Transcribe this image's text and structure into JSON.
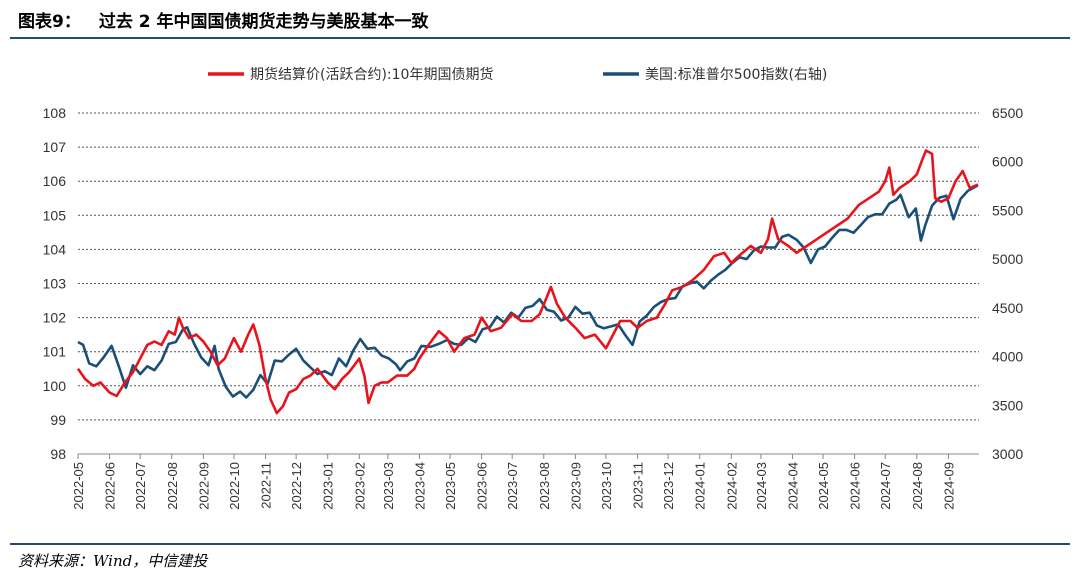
{
  "header": {
    "figure_label": "图表9：",
    "title": "过去 2 年中国国债期货走势与美股基本一致"
  },
  "footer": {
    "source": "资料来源：Wind，中信建投"
  },
  "chart_data": {
    "type": "line",
    "title": "过去 2 年中国国债期货走势与美股基本一致",
    "legend_position": "top-center",
    "grid": true,
    "y_left": {
      "ticks": [
        98,
        99,
        100,
        101,
        102,
        103,
        104,
        105,
        106,
        107,
        108
      ],
      "range": [
        98,
        108
      ]
    },
    "y_right": {
      "ticks": [
        3000,
        3500,
        4000,
        4500,
        5000,
        5500,
        6000,
        6500
      ],
      "range": [
        3000,
        6500
      ]
    },
    "x": {
      "range": [
        "2022-05",
        "2024-10"
      ],
      "ticks": [
        "2022-05",
        "2022-06",
        "2022-07",
        "2022-08",
        "2022-09",
        "2022-10",
        "2022-11",
        "2022-12",
        "2023-01",
        "2023-02",
        "2023-03",
        "2023-04",
        "2023-05",
        "2023-06",
        "2023-07",
        "2023-08",
        "2023-09",
        "2023-10",
        "2023-11",
        "2023-12",
        "2024-01",
        "2024-02",
        "2024-03",
        "2024-04",
        "2024-05",
        "2024-06",
        "2024-07",
        "2024-08",
        "2024-09"
      ]
    },
    "series": [
      {
        "name": "期货结算价(活跃合约):10年期国债期货",
        "axis": "left",
        "color": "#e8141c",
        "points": [
          [
            "2022-05-01",
            100.5
          ],
          [
            "2022-05-08",
            100.2
          ],
          [
            "2022-05-16",
            100.0
          ],
          [
            "2022-05-23",
            100.1
          ],
          [
            "2022-06-01",
            99.8
          ],
          [
            "2022-06-08",
            99.7
          ],
          [
            "2022-06-16",
            100.1
          ],
          [
            "2022-06-24",
            100.4
          ],
          [
            "2022-07-01",
            100.8
          ],
          [
            "2022-07-08",
            101.2
          ],
          [
            "2022-07-15",
            101.3
          ],
          [
            "2022-07-22",
            101.2
          ],
          [
            "2022-07-29",
            101.6
          ],
          [
            "2022-08-04",
            101.5
          ],
          [
            "2022-08-08",
            102.0
          ],
          [
            "2022-08-12",
            101.7
          ],
          [
            "2022-08-18",
            101.4
          ],
          [
            "2022-08-25",
            101.5
          ],
          [
            "2022-09-01",
            101.3
          ],
          [
            "2022-09-08",
            101.0
          ],
          [
            "2022-09-15",
            100.6
          ],
          [
            "2022-09-22",
            100.8
          ],
          [
            "2022-10-01",
            101.4
          ],
          [
            "2022-10-08",
            101.0
          ],
          [
            "2022-10-15",
            101.5
          ],
          [
            "2022-10-20",
            101.8
          ],
          [
            "2022-10-26",
            101.2
          ],
          [
            "2022-11-01",
            100.2
          ],
          [
            "2022-11-06",
            99.6
          ],
          [
            "2022-11-12",
            99.2
          ],
          [
            "2022-11-18",
            99.4
          ],
          [
            "2022-11-24",
            99.8
          ],
          [
            "2022-12-01",
            99.9
          ],
          [
            "2022-12-08",
            100.2
          ],
          [
            "2022-12-15",
            100.3
          ],
          [
            "2022-12-22",
            100.5
          ],
          [
            "2023-01-01",
            100.1
          ],
          [
            "2023-01-08",
            99.9
          ],
          [
            "2023-01-15",
            100.2
          ],
          [
            "2023-01-22",
            100.4
          ],
          [
            "2023-02-01",
            100.8
          ],
          [
            "2023-02-06",
            100.3
          ],
          [
            "2023-02-10",
            99.5
          ],
          [
            "2023-02-16",
            100.0
          ],
          [
            "2023-02-23",
            100.1
          ],
          [
            "2023-03-01",
            100.1
          ],
          [
            "2023-03-10",
            100.3
          ],
          [
            "2023-03-20",
            100.3
          ],
          [
            "2023-03-27",
            100.5
          ],
          [
            "2023-04-01",
            100.8
          ],
          [
            "2023-04-10",
            101.2
          ],
          [
            "2023-04-20",
            101.6
          ],
          [
            "2023-04-28",
            101.4
          ],
          [
            "2023-05-05",
            101.0
          ],
          [
            "2023-05-15",
            101.4
          ],
          [
            "2023-05-25",
            101.5
          ],
          [
            "2023-06-01",
            102.0
          ],
          [
            "2023-06-10",
            101.6
          ],
          [
            "2023-06-20",
            101.7
          ],
          [
            "2023-07-01",
            102.1
          ],
          [
            "2023-07-10",
            101.9
          ],
          [
            "2023-07-20",
            101.9
          ],
          [
            "2023-07-28",
            102.1
          ],
          [
            "2023-08-04",
            102.6
          ],
          [
            "2023-08-08",
            102.9
          ],
          [
            "2023-08-14",
            102.4
          ],
          [
            "2023-08-22",
            102.0
          ],
          [
            "2023-09-01",
            101.7
          ],
          [
            "2023-09-10",
            101.4
          ],
          [
            "2023-09-20",
            101.5
          ],
          [
            "2023-10-01",
            101.1
          ],
          [
            "2023-10-08",
            101.5
          ],
          [
            "2023-10-15",
            101.9
          ],
          [
            "2023-10-25",
            101.9
          ],
          [
            "2023-11-01",
            101.7
          ],
          [
            "2023-11-10",
            101.9
          ],
          [
            "2023-11-20",
            102.0
          ],
          [
            "2023-11-28",
            102.4
          ],
          [
            "2023-12-05",
            102.8
          ],
          [
            "2023-12-15",
            102.9
          ],
          [
            "2023-12-25",
            103.1
          ],
          [
            "2024-01-05",
            103.4
          ],
          [
            "2024-01-15",
            103.8
          ],
          [
            "2024-01-25",
            103.9
          ],
          [
            "2024-02-01",
            103.6
          ],
          [
            "2024-02-08",
            103.8
          ],
          [
            "2024-02-20",
            104.1
          ],
          [
            "2024-03-01",
            103.9
          ],
          [
            "2024-03-08",
            104.3
          ],
          [
            "2024-03-12",
            104.9
          ],
          [
            "2024-03-18",
            104.3
          ],
          [
            "2024-03-28",
            104.1
          ],
          [
            "2024-04-05",
            103.9
          ],
          [
            "2024-04-15",
            104.1
          ],
          [
            "2024-04-25",
            104.3
          ],
          [
            "2024-05-05",
            104.5
          ],
          [
            "2024-05-15",
            104.7
          ],
          [
            "2024-05-25",
            104.9
          ],
          [
            "2024-06-05",
            105.3
          ],
          [
            "2024-06-15",
            105.5
          ],
          [
            "2024-06-25",
            105.7
          ],
          [
            "2024-07-01",
            106.0
          ],
          [
            "2024-07-05",
            106.4
          ],
          [
            "2024-07-09",
            105.6
          ],
          [
            "2024-07-15",
            105.8
          ],
          [
            "2024-07-25",
            106.0
          ],
          [
            "2024-08-01",
            106.2
          ],
          [
            "2024-08-06",
            106.6
          ],
          [
            "2024-08-10",
            106.9
          ],
          [
            "2024-08-16",
            106.8
          ],
          [
            "2024-08-19",
            105.5
          ],
          [
            "2024-08-25",
            105.4
          ],
          [
            "2024-09-01",
            105.5
          ],
          [
            "2024-09-08",
            106.0
          ],
          [
            "2024-09-15",
            106.3
          ],
          [
            "2024-09-22",
            105.8
          ],
          [
            "2024-09-30",
            105.9
          ]
        ]
      },
      {
        "name": "美国:标准普尔500指数(右轴)",
        "axis": "right",
        "color": "#1a4f7a",
        "points": [
          [
            "2022-05-01",
            4150
          ],
          [
            "2022-05-06",
            4120
          ],
          [
            "2022-05-12",
            3930
          ],
          [
            "2022-05-19",
            3900
          ],
          [
            "2022-05-26",
            3990
          ],
          [
            "2022-06-03",
            4110
          ],
          [
            "2022-06-10",
            3900
          ],
          [
            "2022-06-17",
            3680
          ],
          [
            "2022-06-24",
            3910
          ],
          [
            "2022-07-01",
            3820
          ],
          [
            "2022-07-08",
            3900
          ],
          [
            "2022-07-15",
            3860
          ],
          [
            "2022-07-22",
            3960
          ],
          [
            "2022-07-29",
            4130
          ],
          [
            "2022-08-05",
            4150
          ],
          [
            "2022-08-12",
            4280
          ],
          [
            "2022-08-16",
            4300
          ],
          [
            "2022-08-23",
            4130
          ],
          [
            "2022-08-30",
            3990
          ],
          [
            "2022-09-06",
            3910
          ],
          [
            "2022-09-12",
            4110
          ],
          [
            "2022-09-16",
            3870
          ],
          [
            "2022-09-23",
            3690
          ],
          [
            "2022-09-30",
            3590
          ],
          [
            "2022-10-07",
            3640
          ],
          [
            "2022-10-13",
            3580
          ],
          [
            "2022-10-20",
            3660
          ],
          [
            "2022-10-27",
            3810
          ],
          [
            "2022-11-03",
            3720
          ],
          [
            "2022-11-10",
            3960
          ],
          [
            "2022-11-17",
            3950
          ],
          [
            "2022-11-24",
            4020
          ],
          [
            "2022-12-01",
            4080
          ],
          [
            "2022-12-08",
            3960
          ],
          [
            "2022-12-15",
            3890
          ],
          [
            "2022-12-22",
            3820
          ],
          [
            "2022-12-29",
            3850
          ],
          [
            "2023-01-05",
            3810
          ],
          [
            "2023-01-12",
            3980
          ],
          [
            "2023-01-19",
            3900
          ],
          [
            "2023-01-26",
            4060
          ],
          [
            "2023-02-02",
            4180
          ],
          [
            "2023-02-09",
            4080
          ],
          [
            "2023-02-16",
            4090
          ],
          [
            "2023-02-23",
            4010
          ],
          [
            "2023-03-02",
            3980
          ],
          [
            "2023-03-09",
            3920
          ],
          [
            "2023-03-13",
            3860
          ],
          [
            "2023-03-20",
            3950
          ],
          [
            "2023-03-27",
            3980
          ],
          [
            "2023-04-03",
            4110
          ],
          [
            "2023-04-12",
            4100
          ],
          [
            "2023-04-20",
            4130
          ],
          [
            "2023-04-28",
            4170
          ],
          [
            "2023-05-05",
            4130
          ],
          [
            "2023-05-12",
            4120
          ],
          [
            "2023-05-19",
            4190
          ],
          [
            "2023-05-26",
            4150
          ],
          [
            "2023-06-02",
            4280
          ],
          [
            "2023-06-09",
            4300
          ],
          [
            "2023-06-16",
            4410
          ],
          [
            "2023-06-23",
            4350
          ],
          [
            "2023-06-30",
            4450
          ],
          [
            "2023-07-07",
            4400
          ],
          [
            "2023-07-14",
            4500
          ],
          [
            "2023-07-21",
            4520
          ],
          [
            "2023-07-28",
            4590
          ],
          [
            "2023-08-04",
            4480
          ],
          [
            "2023-08-11",
            4460
          ],
          [
            "2023-08-18",
            4370
          ],
          [
            "2023-08-25",
            4400
          ],
          [
            "2023-09-01",
            4510
          ],
          [
            "2023-09-08",
            4440
          ],
          [
            "2023-09-15",
            4450
          ],
          [
            "2023-09-22",
            4320
          ],
          [
            "2023-09-29",
            4290
          ],
          [
            "2023-10-06",
            4310
          ],
          [
            "2023-10-13",
            4330
          ],
          [
            "2023-10-20",
            4220
          ],
          [
            "2023-10-27",
            4120
          ],
          [
            "2023-11-03",
            4360
          ],
          [
            "2023-11-10",
            4420
          ],
          [
            "2023-11-17",
            4510
          ],
          [
            "2023-11-24",
            4560
          ],
          [
            "2023-12-01",
            4590
          ],
          [
            "2023-12-08",
            4600
          ],
          [
            "2023-12-15",
            4720
          ],
          [
            "2023-12-22",
            4750
          ],
          [
            "2023-12-29",
            4770
          ],
          [
            "2024-01-05",
            4700
          ],
          [
            "2024-01-12",
            4780
          ],
          [
            "2024-01-19",
            4840
          ],
          [
            "2024-01-26",
            4890
          ],
          [
            "2024-02-02",
            4960
          ],
          [
            "2024-02-09",
            5020
          ],
          [
            "2024-02-16",
            5000
          ],
          [
            "2024-02-23",
            5090
          ],
          [
            "2024-03-01",
            5130
          ],
          [
            "2024-03-08",
            5120
          ],
          [
            "2024-03-15",
            5120
          ],
          [
            "2024-03-22",
            5230
          ],
          [
            "2024-03-28",
            5250
          ],
          [
            "2024-04-05",
            5200
          ],
          [
            "2024-04-12",
            5120
          ],
          [
            "2024-04-19",
            4960
          ],
          [
            "2024-04-26",
            5100
          ],
          [
            "2024-05-03",
            5130
          ],
          [
            "2024-05-10",
            5220
          ],
          [
            "2024-05-17",
            5300
          ],
          [
            "2024-05-24",
            5300
          ],
          [
            "2024-05-31",
            5270
          ],
          [
            "2024-06-07",
            5350
          ],
          [
            "2024-06-14",
            5430
          ],
          [
            "2024-06-21",
            5460
          ],
          [
            "2024-06-28",
            5460
          ],
          [
            "2024-07-05",
            5570
          ],
          [
            "2024-07-12",
            5610
          ],
          [
            "2024-07-16",
            5660
          ],
          [
            "2024-07-24",
            5430
          ],
          [
            "2024-07-31",
            5520
          ],
          [
            "2024-08-05",
            5190
          ],
          [
            "2024-08-09",
            5340
          ],
          [
            "2024-08-16",
            5550
          ],
          [
            "2024-08-23",
            5630
          ],
          [
            "2024-08-30",
            5650
          ],
          [
            "2024-09-06",
            5410
          ],
          [
            "2024-09-13",
            5620
          ],
          [
            "2024-09-20",
            5700
          ],
          [
            "2024-09-27",
            5740
          ],
          [
            "2024-09-30",
            5760
          ]
        ]
      }
    ]
  }
}
